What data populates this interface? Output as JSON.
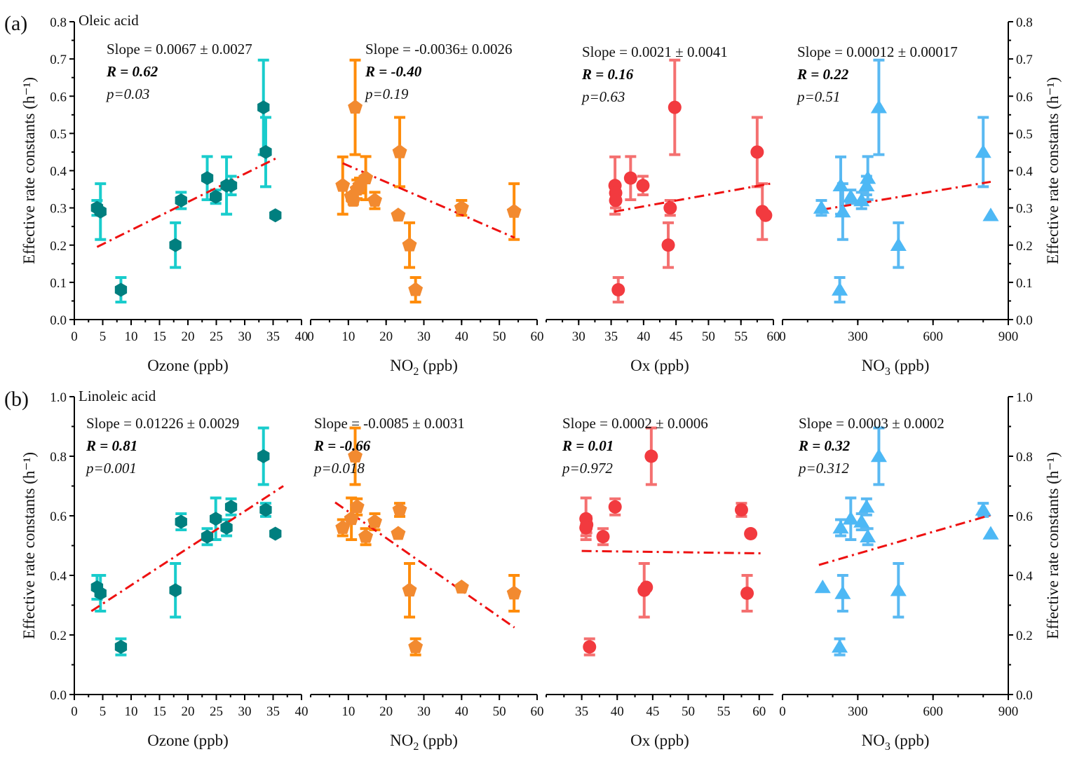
{
  "chart_data": [
    {
      "type": "scatter",
      "panel_label": "(a)",
      "title": "Oleic acid",
      "ylabel": "Effective rate constants (h⁻¹)",
      "ylim": [
        0.0,
        0.8
      ],
      "yticks": [
        "0.0",
        "0.1",
        "0.2",
        "0.3",
        "0.4",
        "0.5",
        "0.6",
        "0.7",
        "0.8"
      ],
      "ytick_values": [
        0,
        0.1,
        0.2,
        0.3,
        0.4,
        0.5,
        0.6,
        0.7,
        0.8
      ],
      "minor_yticks": true,
      "subplots": [
        {
          "xlabel": "Ozone (ppb)",
          "xlabel_sub": "",
          "xlim": [
            0,
            40
          ],
          "xticks": [
            "0",
            "5",
            "10",
            "15",
            "20",
            "25",
            "30",
            "35",
            "40"
          ],
          "xtick_values": [
            0,
            5,
            10,
            15,
            20,
            25,
            30,
            35,
            40
          ],
          "marker": "hexagon",
          "marker_color": "#007f7f",
          "error_color": "#19cccc",
          "stats": {
            "slope": "Slope = 0.0067 ± 0.0027",
            "r": "R = 0.62",
            "p": "p=0.03"
          },
          "fit": {
            "x": [
              4.0,
              35.5
            ],
            "y": [
              0.195,
              0.433
            ]
          },
          "points": [
            {
              "x": 4.0,
              "y": 0.3,
              "err": 0.02
            },
            {
              "x": 4.6,
              "y": 0.29,
              "err": 0.075
            },
            {
              "x": 8.2,
              "y": 0.08,
              "err": 0.033
            },
            {
              "x": 17.8,
              "y": 0.2,
              "err": 0.06
            },
            {
              "x": 18.8,
              "y": 0.32,
              "err": 0.022
            },
            {
              "x": 23.4,
              "y": 0.38,
              "err": 0.058
            },
            {
              "x": 24.9,
              "y": 0.33,
              "err": 0.018
            },
            {
              "x": 26.8,
              "y": 0.36,
              "err": 0.077
            },
            {
              "x": 27.6,
              "y": 0.36,
              "err": 0.025
            },
            {
              "x": 33.3,
              "y": 0.57,
              "err": 0.127
            },
            {
              "x": 33.7,
              "y": 0.45,
              "err": 0.093
            },
            {
              "x": 35.4,
              "y": 0.28,
              "err": 0
            }
          ]
        },
        {
          "xlabel": "NO",
          "xlabel_sub": "2",
          "xlabel_unit": " (ppb)",
          "xlim": [
            0,
            60
          ],
          "xticks": [
            "0",
            "10",
            "20",
            "30",
            "40",
            "50",
            "60"
          ],
          "xtick_values": [
            0,
            10,
            20,
            30,
            40,
            50,
            60
          ],
          "marker": "pentagon",
          "marker_color": "#f28a30",
          "error_color": "#ff8c0a",
          "stats": {
            "slope": "Slope = -0.0036± 0.0026",
            "r": "R = -0.40",
            "p": "p=0.19"
          },
          "fit": {
            "x": [
              8.5,
              54.0
            ],
            "y": [
              0.42,
              0.22
            ]
          },
          "points": [
            {
              "x": 8.5,
              "y": 0.36,
              "err": 0.077
            },
            {
              "x": 10.8,
              "y": 0.33,
              "err": 0.01
            },
            {
              "x": 11.3,
              "y": 0.32,
              "err": 0.01
            },
            {
              "x": 11.8,
              "y": 0.57,
              "err": 0.127
            },
            {
              "x": 12.3,
              "y": 0.35,
              "err": 0.025
            },
            {
              "x": 13.0,
              "y": 0.36,
              "err": 0.02
            },
            {
              "x": 14.6,
              "y": 0.38,
              "err": 0.058
            },
            {
              "x": 17.0,
              "y": 0.32,
              "err": 0.022
            },
            {
              "x": 23.6,
              "y": 0.45,
              "err": 0.093
            },
            {
              "x": 23.2,
              "y": 0.28,
              "err": 0
            },
            {
              "x": 26.2,
              "y": 0.2,
              "err": 0.06
            },
            {
              "x": 27.8,
              "y": 0.08,
              "err": 0.033
            },
            {
              "x": 40.0,
              "y": 0.3,
              "err": 0.02
            },
            {
              "x": 53.9,
              "y": 0.29,
              "err": 0.075
            }
          ]
        },
        {
          "xlabel": "Ox (ppb)",
          "xlabel_sub": "",
          "xlim": [
            25,
            60
          ],
          "xticks": [
            "30",
            "35",
            "40",
            "45",
            "50",
            "55",
            "60"
          ],
          "xtick_values": [
            30,
            35,
            40,
            45,
            50,
            55,
            60
          ],
          "marker": "circle",
          "marker_color": "#f23a3f",
          "error_color": "#f47070",
          "stats": {
            "slope": "Slope = 0.0021 ± 0.0041",
            "r": "R = 0.16",
            "p": "p=0.63"
          },
          "fit": {
            "x": [
              35.5,
              59.5
            ],
            "y": [
              0.29,
              0.365
            ]
          },
          "points": [
            {
              "x": 35.6,
              "y": 0.36,
              "err": 0.077
            },
            {
              "x": 35.7,
              "y": 0.34,
              "err": 0.02
            },
            {
              "x": 35.7,
              "y": 0.32,
              "err": 0.02
            },
            {
              "x": 36.1,
              "y": 0.08,
              "err": 0.033
            },
            {
              "x": 38.0,
              "y": 0.38,
              "err": 0.058
            },
            {
              "x": 39.9,
              "y": 0.36,
              "err": 0.025
            },
            {
              "x": 43.8,
              "y": 0.2,
              "err": 0.06
            },
            {
              "x": 44.1,
              "y": 0.3,
              "err": 0.02
            },
            {
              "x": 44.8,
              "y": 0.57,
              "err": 0.127
            },
            {
              "x": 57.5,
              "y": 0.45,
              "err": 0.093
            },
            {
              "x": 58.3,
              "y": 0.29,
              "err": 0.075
            },
            {
              "x": 58.8,
              "y": 0.28,
              "err": 0
            }
          ]
        },
        {
          "xlabel": "NO",
          "xlabel_sub": "3",
          "xlabel_unit": " (ppb)",
          "xlim": [
            0,
            900
          ],
          "xticks": [
            "0",
            "300",
            "600",
            "900"
          ],
          "xtick_values": [
            0,
            300,
            600,
            900
          ],
          "minor_xstep": 100,
          "marker": "triangle",
          "marker_color": "#4db8f5",
          "error_color": "#5ab9f2",
          "stats": {
            "slope": "Slope = 0.00012 ± 0.00017",
            "r": "R = 0.22",
            "p": "p=0.51"
          },
          "fit": {
            "x": [
              155,
              830
            ],
            "y": [
              0.295,
              0.37
            ]
          },
          "points": [
            {
              "x": 155,
              "y": 0.3,
              "err": 0.02
            },
            {
              "x": 228,
              "y": 0.08,
              "err": 0.033
            },
            {
              "x": 232,
              "y": 0.36,
              "err": 0.077
            },
            {
              "x": 240,
              "y": 0.29,
              "err": 0.075
            },
            {
              "x": 272,
              "y": 0.33,
              "err": 0.018
            },
            {
              "x": 315,
              "y": 0.32,
              "err": 0.022
            },
            {
              "x": 335,
              "y": 0.36,
              "err": 0.025
            },
            {
              "x": 340,
              "y": 0.38,
              "err": 0.058
            },
            {
              "x": 384,
              "y": 0.57,
              "err": 0.127
            },
            {
              "x": 462,
              "y": 0.2,
              "err": 0.06
            },
            {
              "x": 800,
              "y": 0.45,
              "err": 0.093
            },
            {
              "x": 830,
              "y": 0.28,
              "err": 0
            }
          ]
        }
      ]
    },
    {
      "type": "scatter",
      "panel_label": "(b)",
      "title": "Linoleic acid",
      "ylabel": "Effective rate constants (h⁻¹)",
      "ylim": [
        0.0,
        1.0
      ],
      "yticks": [
        "0.0",
        "0.2",
        "0.4",
        "0.6",
        "0.8",
        "1.0"
      ],
      "ytick_values": [
        0,
        0.2,
        0.4,
        0.6,
        0.8,
        1.0
      ],
      "minor_yticks": true,
      "subplots": [
        {
          "xlabel": "Ozone (ppb)",
          "xlabel_sub": "",
          "xlim": [
            0,
            40
          ],
          "xticks": [
            "0",
            "5",
            "10",
            "15",
            "20",
            "25",
            "30",
            "35",
            "40"
          ],
          "xtick_values": [
            0,
            5,
            10,
            15,
            20,
            25,
            30,
            35,
            40
          ],
          "marker": "hexagon",
          "marker_color": "#007f7f",
          "error_color": "#19cccc",
          "stats": {
            "slope": "Slope = 0.01226 ± 0.0029",
            "r": "R = 0.81",
            "p": "p=0.001"
          },
          "fit": {
            "x": [
              3.0,
              36.8
            ],
            "y": [
              0.28,
              0.7
            ]
          },
          "points": [
            {
              "x": 4.0,
              "y": 0.36,
              "err": 0.04
            },
            {
              "x": 4.6,
              "y": 0.34,
              "err": 0.06
            },
            {
              "x": 8.2,
              "y": 0.16,
              "err": 0.027
            },
            {
              "x": 17.8,
              "y": 0.35,
              "err": 0.09
            },
            {
              "x": 18.8,
              "y": 0.58,
              "err": 0.027
            },
            {
              "x": 23.4,
              "y": 0.53,
              "err": 0.027
            },
            {
              "x": 24.9,
              "y": 0.59,
              "err": 0.07
            },
            {
              "x": 26.8,
              "y": 0.56,
              "err": 0.027
            },
            {
              "x": 27.6,
              "y": 0.63,
              "err": 0.027
            },
            {
              "x": 33.3,
              "y": 0.8,
              "err": 0.095
            },
            {
              "x": 33.7,
              "y": 0.62,
              "err": 0.022
            },
            {
              "x": 35.4,
              "y": 0.54,
              "err": 0
            }
          ]
        },
        {
          "xlabel": "NO",
          "xlabel_sub": "2",
          "xlabel_unit": " (ppb)",
          "xlim": [
            0,
            60
          ],
          "xticks": [
            "10",
            "20",
            "30",
            "40",
            "50",
            "60"
          ],
          "xtick_values": [
            10,
            20,
            30,
            40,
            50,
            60
          ],
          "marker": "pentagon",
          "marker_color": "#f28a30",
          "error_color": "#ff8c0a",
          "stats": {
            "slope": "Slope = -0.0085 ± 0.0031",
            "r": "R = -0.66",
            "p": "p=0.018"
          },
          "fit": {
            "x": [
              6.5,
              54.0
            ],
            "y": [
              0.645,
              0.225
            ]
          },
          "points": [
            {
              "x": 8.5,
              "y": 0.56,
              "err": 0.027
            },
            {
              "x": 10.8,
              "y": 0.59,
              "err": 0.07
            },
            {
              "x": 11.8,
              "y": 0.8,
              "err": 0.095
            },
            {
              "x": 12.3,
              "y": 0.63,
              "err": 0.027
            },
            {
              "x": 14.6,
              "y": 0.53,
              "err": 0.027
            },
            {
              "x": 17.0,
              "y": 0.58,
              "err": 0.027
            },
            {
              "x": 23.6,
              "y": 0.62,
              "err": 0.022
            },
            {
              "x": 23.2,
              "y": 0.54,
              "err": 0
            },
            {
              "x": 26.2,
              "y": 0.35,
              "err": 0.09
            },
            {
              "x": 27.8,
              "y": 0.16,
              "err": 0.027
            },
            {
              "x": 40.0,
              "y": 0.36,
              "err": 0
            },
            {
              "x": 53.9,
              "y": 0.34,
              "err": 0.06
            }
          ]
        },
        {
          "xlabel": "Ox (ppb)",
          "xlabel_sub": "",
          "xlim": [
            30,
            62
          ],
          "xticks": [
            "35",
            "40",
            "45",
            "50",
            "55",
            "60"
          ],
          "xtick_values": [
            35,
            40,
            45,
            50,
            55,
            60
          ],
          "marker": "circle",
          "marker_color": "#f23a3f",
          "error_color": "#f47070",
          "stats": {
            "slope": "Slope = 0.0002 ± 0.0006",
            "r": "R = 0.01",
            "p": "p=0.972"
          },
          "fit": {
            "x": [
              35.0,
              60.5
            ],
            "y": [
              0.482,
              0.474
            ]
          },
          "points": [
            {
              "x": 35.6,
              "y": 0.59,
              "err": 0.07
            },
            {
              "x": 35.7,
              "y": 0.57,
              "err": 0.027
            },
            {
              "x": 35.6,
              "y": 0.56,
              "err": 0.027
            },
            {
              "x": 36.1,
              "y": 0.16,
              "err": 0.027
            },
            {
              "x": 38.0,
              "y": 0.53,
              "err": 0.027
            },
            {
              "x": 39.7,
              "y": 0.63,
              "err": 0.027
            },
            {
              "x": 43.8,
              "y": 0.35,
              "err": 0.09
            },
            {
              "x": 44.1,
              "y": 0.36,
              "err": 0
            },
            {
              "x": 44.8,
              "y": 0.8,
              "err": 0.095
            },
            {
              "x": 57.5,
              "y": 0.62,
              "err": 0.022
            },
            {
              "x": 58.3,
              "y": 0.34,
              "err": 0.06
            },
            {
              "x": 58.8,
              "y": 0.54,
              "err": 0
            }
          ]
        },
        {
          "xlabel": "NO",
          "xlabel_sub": "3",
          "xlabel_unit": " (ppb)",
          "xlim": [
            0,
            900
          ],
          "xticks": [
            "0",
            "300",
            "600",
            "900"
          ],
          "xtick_values": [
            0,
            300,
            600,
            900
          ],
          "minor_xstep": 100,
          "marker": "triangle",
          "marker_color": "#4db8f5",
          "error_color": "#5ab9f2",
          "stats": {
            "slope": "Slope = 0.0003 ± 0.0002",
            "r": "R = 0.32",
            "p": "p=0.312"
          },
          "fit": {
            "x": [
              145,
              840
            ],
            "y": [
              0.435,
              0.605
            ]
          },
          "points": [
            {
              "x": 160,
              "y": 0.36,
              "err": 0
            },
            {
              "x": 228,
              "y": 0.16,
              "err": 0.027
            },
            {
              "x": 232,
              "y": 0.56,
              "err": 0.027
            },
            {
              "x": 240,
              "y": 0.34,
              "err": 0.06
            },
            {
              "x": 272,
              "y": 0.59,
              "err": 0.07
            },
            {
              "x": 315,
              "y": 0.58,
              "err": 0.027
            },
            {
              "x": 335,
              "y": 0.63,
              "err": 0.027
            },
            {
              "x": 340,
              "y": 0.53,
              "err": 0.027
            },
            {
              "x": 384,
              "y": 0.8,
              "err": 0.095
            },
            {
              "x": 462,
              "y": 0.35,
              "err": 0.09
            },
            {
              "x": 800,
              "y": 0.62,
              "err": 0.022
            },
            {
              "x": 830,
              "y": 0.54,
              "err": 0
            }
          ]
        }
      ]
    }
  ],
  "colors": {
    "fit_line": "#ee1111",
    "axis": "#000000"
  }
}
